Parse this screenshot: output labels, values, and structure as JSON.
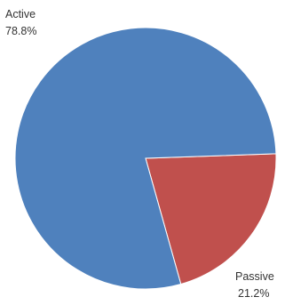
{
  "chart_data": {
    "type": "pie",
    "start_angle_deg": 90,
    "direction": "clockwise",
    "slices": [
      {
        "label": "Passive",
        "value": 21.2,
        "percent_label": "21.2%",
        "color": "#c0504d"
      },
      {
        "label": "Active",
        "value": 78.8,
        "percent_label": "78.8%",
        "color": "#4f81bd"
      }
    ],
    "legend": "none",
    "data_labels": "outside"
  }
}
